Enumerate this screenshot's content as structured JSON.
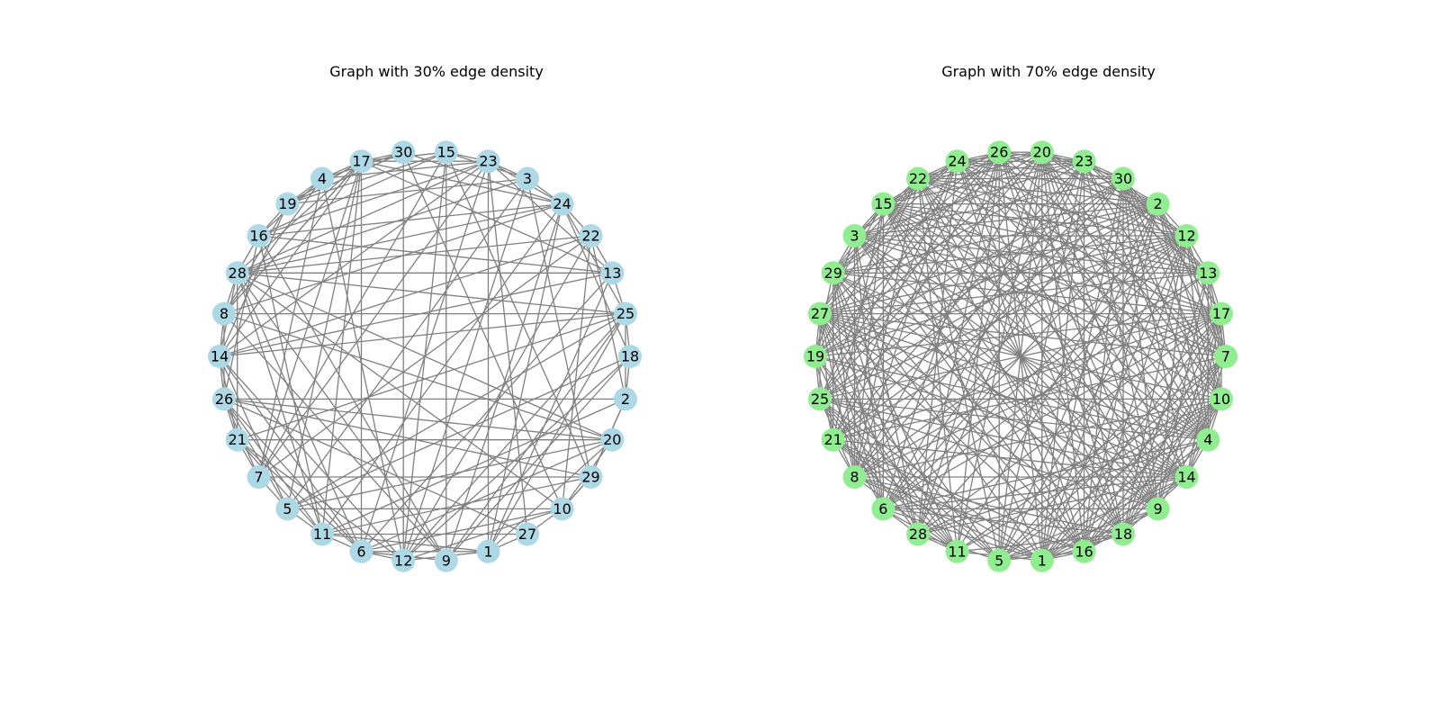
{
  "graphs": [
    {
      "title": "Graph with 30% edge density",
      "node_color": "#add8e6",
      "edge_color": "#808080",
      "edge_density": 0.3,
      "nodes": [
        "18",
        "25",
        "13",
        "22",
        "24",
        "3",
        "23",
        "15",
        "30",
        "17",
        "4",
        "19",
        "16",
        "28",
        "8",
        "14",
        "26",
        "21",
        "7",
        "5",
        "11",
        "6",
        "12",
        "9",
        "1",
        "27",
        "10",
        "29",
        "20",
        "2"
      ],
      "edges": [
        [
          "28",
          "25"
        ],
        [
          "28",
          "13"
        ],
        [
          "28",
          "22"
        ],
        [
          "28",
          "24"
        ],
        [
          "28",
          "3"
        ],
        [
          "28",
          "23"
        ],
        [
          "28",
          "20"
        ],
        [
          "28",
          "10"
        ],
        [
          "28",
          "6"
        ],
        [
          "28",
          "11"
        ],
        [
          "28",
          "9"
        ],
        [
          "17",
          "13"
        ],
        [
          "17",
          "28"
        ],
        [
          "17",
          "14"
        ],
        [
          "17",
          "11"
        ],
        [
          "17",
          "6"
        ],
        [
          "17",
          "8"
        ],
        [
          "17",
          "5"
        ],
        [
          "17",
          "19"
        ],
        [
          "30",
          "24"
        ],
        [
          "30",
          "12"
        ],
        [
          "30",
          "10"
        ],
        [
          "30",
          "19"
        ],
        [
          "15",
          "29"
        ],
        [
          "15",
          "12"
        ],
        [
          "15",
          "9"
        ],
        [
          "15",
          "16"
        ],
        [
          "15",
          "7"
        ],
        [
          "23",
          "27"
        ],
        [
          "23",
          "7"
        ],
        [
          "23",
          "16"
        ],
        [
          "23",
          "14"
        ],
        [
          "23",
          "13"
        ],
        [
          "23",
          "6"
        ],
        [
          "23",
          "1"
        ],
        [
          "3",
          "29"
        ],
        [
          "3",
          "5"
        ],
        [
          "3",
          "19"
        ],
        [
          "3",
          "12"
        ],
        [
          "24",
          "1"
        ],
        [
          "24",
          "9"
        ],
        [
          "24",
          "25"
        ],
        [
          "24",
          "18"
        ],
        [
          "24",
          "8"
        ],
        [
          "24",
          "16"
        ],
        [
          "24",
          "11"
        ],
        [
          "22",
          "7"
        ],
        [
          "22",
          "14"
        ],
        [
          "22",
          "12"
        ],
        [
          "22",
          "2"
        ],
        [
          "13",
          "14"
        ],
        [
          "13",
          "16"
        ],
        [
          "13",
          "6"
        ],
        [
          "13",
          "1"
        ],
        [
          "25",
          "8"
        ],
        [
          "25",
          "18"
        ],
        [
          "25",
          "14"
        ],
        [
          "25",
          "5"
        ],
        [
          "25",
          "21"
        ],
        [
          "25",
          "12"
        ],
        [
          "25",
          "9"
        ],
        [
          "25",
          "1"
        ],
        [
          "18",
          "2"
        ],
        [
          "18",
          "12"
        ],
        [
          "18",
          "9"
        ],
        [
          "18",
          "5"
        ],
        [
          "2",
          "26"
        ],
        [
          "2",
          "29"
        ],
        [
          "2",
          "11"
        ],
        [
          "20",
          "21"
        ],
        [
          "20",
          "6"
        ],
        [
          "20",
          "8"
        ],
        [
          "20",
          "5"
        ],
        [
          "20",
          "1"
        ],
        [
          "20",
          "26"
        ],
        [
          "29",
          "29"
        ],
        [
          "29",
          "10"
        ],
        [
          "29",
          "7"
        ],
        [
          "29",
          "11"
        ],
        [
          "29",
          "26"
        ],
        [
          "10",
          "5"
        ],
        [
          "10",
          "29"
        ],
        [
          "10",
          "12"
        ],
        [
          "10",
          "6"
        ],
        [
          "10",
          "22"
        ],
        [
          "27",
          "11"
        ],
        [
          "27",
          "10"
        ],
        [
          "27",
          "26"
        ],
        [
          "27",
          "1"
        ],
        [
          "1",
          "1"
        ],
        [
          "1",
          "12"
        ],
        [
          "1",
          "6"
        ],
        [
          "1",
          "11"
        ],
        [
          "9",
          "8"
        ],
        [
          "9",
          "16"
        ],
        [
          "9",
          "6"
        ],
        [
          "12",
          "14"
        ],
        [
          "12",
          "21"
        ],
        [
          "12",
          "6"
        ],
        [
          "12",
          "4"
        ],
        [
          "6",
          "21"
        ],
        [
          "6",
          "26"
        ],
        [
          "6",
          "14"
        ],
        [
          "6",
          "11"
        ],
        [
          "11",
          "16"
        ],
        [
          "11",
          "26"
        ],
        [
          "11",
          "21"
        ],
        [
          "11",
          "5"
        ],
        [
          "5",
          "26"
        ],
        [
          "5",
          "7"
        ],
        [
          "5",
          "14"
        ],
        [
          "7",
          "26"
        ],
        [
          "7",
          "21"
        ],
        [
          "7",
          "4"
        ],
        [
          "7",
          "17"
        ],
        [
          "21",
          "26"
        ],
        [
          "21",
          "14"
        ],
        [
          "21",
          "28"
        ],
        [
          "26",
          "14"
        ],
        [
          "26",
          "8"
        ],
        [
          "26",
          "16"
        ],
        [
          "14",
          "8"
        ],
        [
          "14",
          "28"
        ],
        [
          "14",
          "19"
        ],
        [
          "8",
          "28"
        ],
        [
          "8",
          "19"
        ],
        [
          "8",
          "4"
        ],
        [
          "8",
          "17"
        ],
        [
          "16",
          "28"
        ],
        [
          "16",
          "19"
        ],
        [
          "16",
          "4"
        ],
        [
          "19",
          "4"
        ],
        [
          "19",
          "17"
        ],
        [
          "19",
          "30"
        ],
        [
          "19",
          "15"
        ],
        [
          "4",
          "17"
        ],
        [
          "4",
          "30"
        ],
        [
          "4",
          "23"
        ],
        [
          "17",
          "30"
        ],
        [
          "17",
          "15"
        ],
        [
          "17",
          "23"
        ],
        [
          "17",
          "24"
        ],
        [
          "15",
          "23"
        ],
        [
          "15",
          "3"
        ],
        [
          "23",
          "3"
        ],
        [
          "23",
          "24"
        ],
        [
          "3",
          "24"
        ],
        [
          "24",
          "22"
        ],
        [
          "22",
          "13"
        ],
        [
          "13",
          "25"
        ],
        [
          "25",
          "2"
        ],
        [
          "2",
          "29"
        ],
        [
          "20",
          "10"
        ]
      ]
    },
    {
      "title": "Graph with 70% edge density",
      "node_color": "#90ee90",
      "edge_color": "#808080",
      "edge_density": 0.7,
      "nodes": [
        "7",
        "17",
        "13",
        "12",
        "2",
        "30",
        "23",
        "20",
        "26",
        "24",
        "22",
        "15",
        "3",
        "29",
        "27",
        "19",
        "25",
        "21",
        "8",
        "6",
        "28",
        "11",
        "5",
        "1",
        "16",
        "18",
        "9",
        "14",
        "4",
        "10"
      ],
      "edges": []
    }
  ]
}
